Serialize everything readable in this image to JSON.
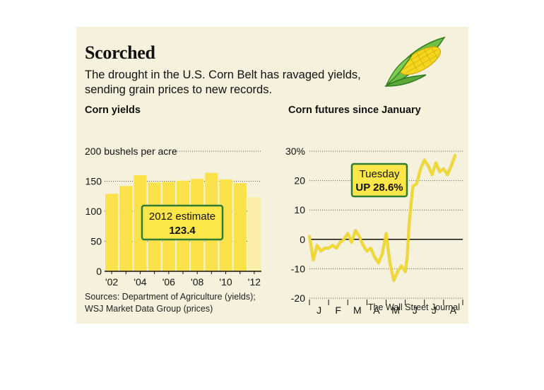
{
  "header": {
    "title": "Scorched",
    "subtitle": "The drought in the U.S. Corn Belt has ravaged yields, sending grain prices to new records."
  },
  "footer": {
    "source_line1": "Sources: Department of Agriculture (yields);",
    "source_line2": "WSJ Market Data Group (prices)",
    "credit": "The Wall Street Journal"
  },
  "colors": {
    "panel": "#f5f1dc",
    "bar": "#fbe14a",
    "bar_estimate": "#fbeea9",
    "line": "#f2d92f",
    "callout_fill": "#fde64a",
    "callout_border": "#2e7d32",
    "husk": "#6dbf45"
  },
  "icons": {
    "corn": "corn-cob-icon"
  },
  "chart_data": [
    {
      "type": "bar",
      "title": "Corn yields",
      "ylabel": "200 bushels per acre",
      "ylim": [
        0,
        200
      ],
      "yticks": [
        0,
        50,
        100,
        150
      ],
      "categories": [
        "2002",
        "2003",
        "2004",
        "2005",
        "2006",
        "2007",
        "2008",
        "2009",
        "2010",
        "2011",
        "2012"
      ],
      "tick_labels": [
        "'02",
        "'04",
        "'06",
        "'08",
        "'10",
        "'12"
      ],
      "values": [
        129,
        142,
        160,
        148,
        149,
        151,
        154,
        164,
        153,
        147,
        123.4
      ],
      "estimate_index": 10,
      "annotation": {
        "label": "2012 estimate",
        "value": "123.4"
      },
      "grid": true
    },
    {
      "type": "line",
      "title": "Corn futures since January",
      "ylim": [
        -20,
        30
      ],
      "yticks": [
        30,
        20,
        10,
        0,
        -10,
        -20
      ],
      "ytick_labels": [
        "30%",
        "20",
        "10",
        "0",
        "-10",
        "-20"
      ],
      "months": [
        "J",
        "F",
        "M",
        "A",
        "M",
        "J",
        "J",
        "A"
      ],
      "x": [
        0,
        0.2,
        0.4,
        0.6,
        0.8,
        1.0,
        1.2,
        1.4,
        1.6,
        1.8,
        2.0,
        2.2,
        2.4,
        2.6,
        2.8,
        3.0,
        3.2,
        3.4,
        3.6,
        3.8,
        4.0,
        4.2,
        4.4,
        4.6,
        4.8,
        5.0,
        5.1,
        5.2,
        5.3,
        5.4,
        5.6,
        5.8,
        6.0,
        6.2,
        6.4,
        6.6,
        6.8,
        7.0,
        7.2,
        7.4,
        7.6
      ],
      "values": [
        1,
        -7,
        -2,
        -4,
        -3,
        -3,
        -2,
        -3,
        -1,
        0,
        2,
        -1,
        3,
        1,
        -2,
        -4,
        -3,
        -6,
        -8,
        -5,
        2,
        -8,
        -14,
        -11,
        -9,
        -11,
        -6,
        5,
        12,
        18,
        19,
        24,
        27,
        25,
        22,
        26,
        23,
        24,
        22,
        25,
        28.6
      ],
      "annotation": {
        "label": "Tuesday",
        "value": "UP 28.6%"
      },
      "grid": true
    }
  ]
}
